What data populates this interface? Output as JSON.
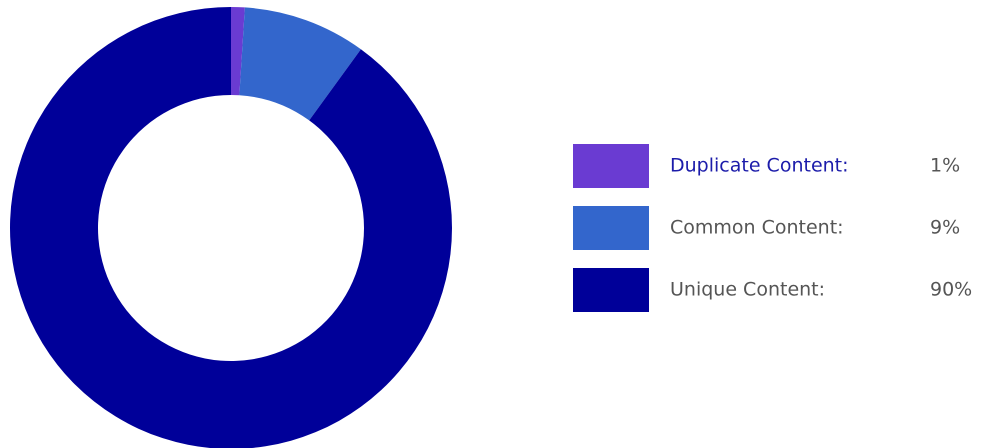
{
  "chart_data": {
    "type": "donut",
    "categories": [
      "Duplicate Content:",
      "Common Content:",
      "Unique Content:"
    ],
    "values": [
      1,
      9,
      90
    ],
    "value_labels": [
      "1%",
      "9%",
      "90%"
    ],
    "colors": [
      "#6a3bd2",
      "#3366cc",
      "#000099"
    ]
  }
}
